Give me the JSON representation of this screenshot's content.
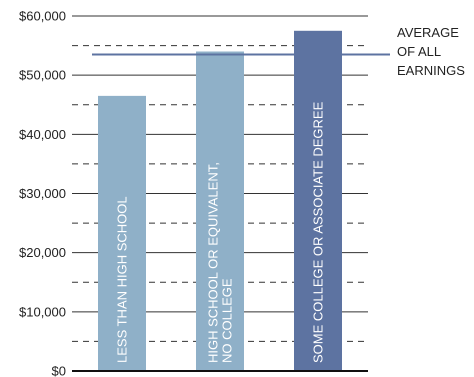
{
  "chart_data": {
    "type": "bar",
    "categories": [
      "LESS THAN HIGH SCHOOL",
      "HIGH SCHOOL OR EQUIVALENT, NO COLLEGE",
      "SOME COLLEGE OR ASSOCIATE DEGREE"
    ],
    "category_label_lines": [
      [
        "LESS THAN HIGH SCHOOL"
      ],
      [
        "HIGH SCHOOL OR EQUIVALENT,",
        "NO COLLEGE"
      ],
      [
        "SOME COLLEGE OR ASSOCIATE DEGREE"
      ]
    ],
    "values": [
      46500,
      54000,
      57500
    ],
    "bar_colors": [
      "#8fb0c8",
      "#8fb0c8",
      "#5d73a1"
    ],
    "ylim": [
      0,
      60000
    ],
    "y_ticks": [
      0,
      10000,
      20000,
      30000,
      40000,
      50000,
      60000
    ],
    "y_tick_labels": [
      "$0",
      "$10,000",
      "$20,000",
      "$30,000",
      "$40,000",
      "$50,000",
      "$60,000"
    ],
    "minor_dashed_gridlines": [
      5000,
      15000,
      25000,
      35000,
      45000,
      55000
    ],
    "reference_line": {
      "value": 53500,
      "label_lines": [
        "AVERAGE",
        "OF ALL",
        "EARNINGS"
      ],
      "color": "#5d73a1"
    },
    "grid_color": "#333333",
    "title": "",
    "xlabel": "",
    "ylabel": ""
  }
}
